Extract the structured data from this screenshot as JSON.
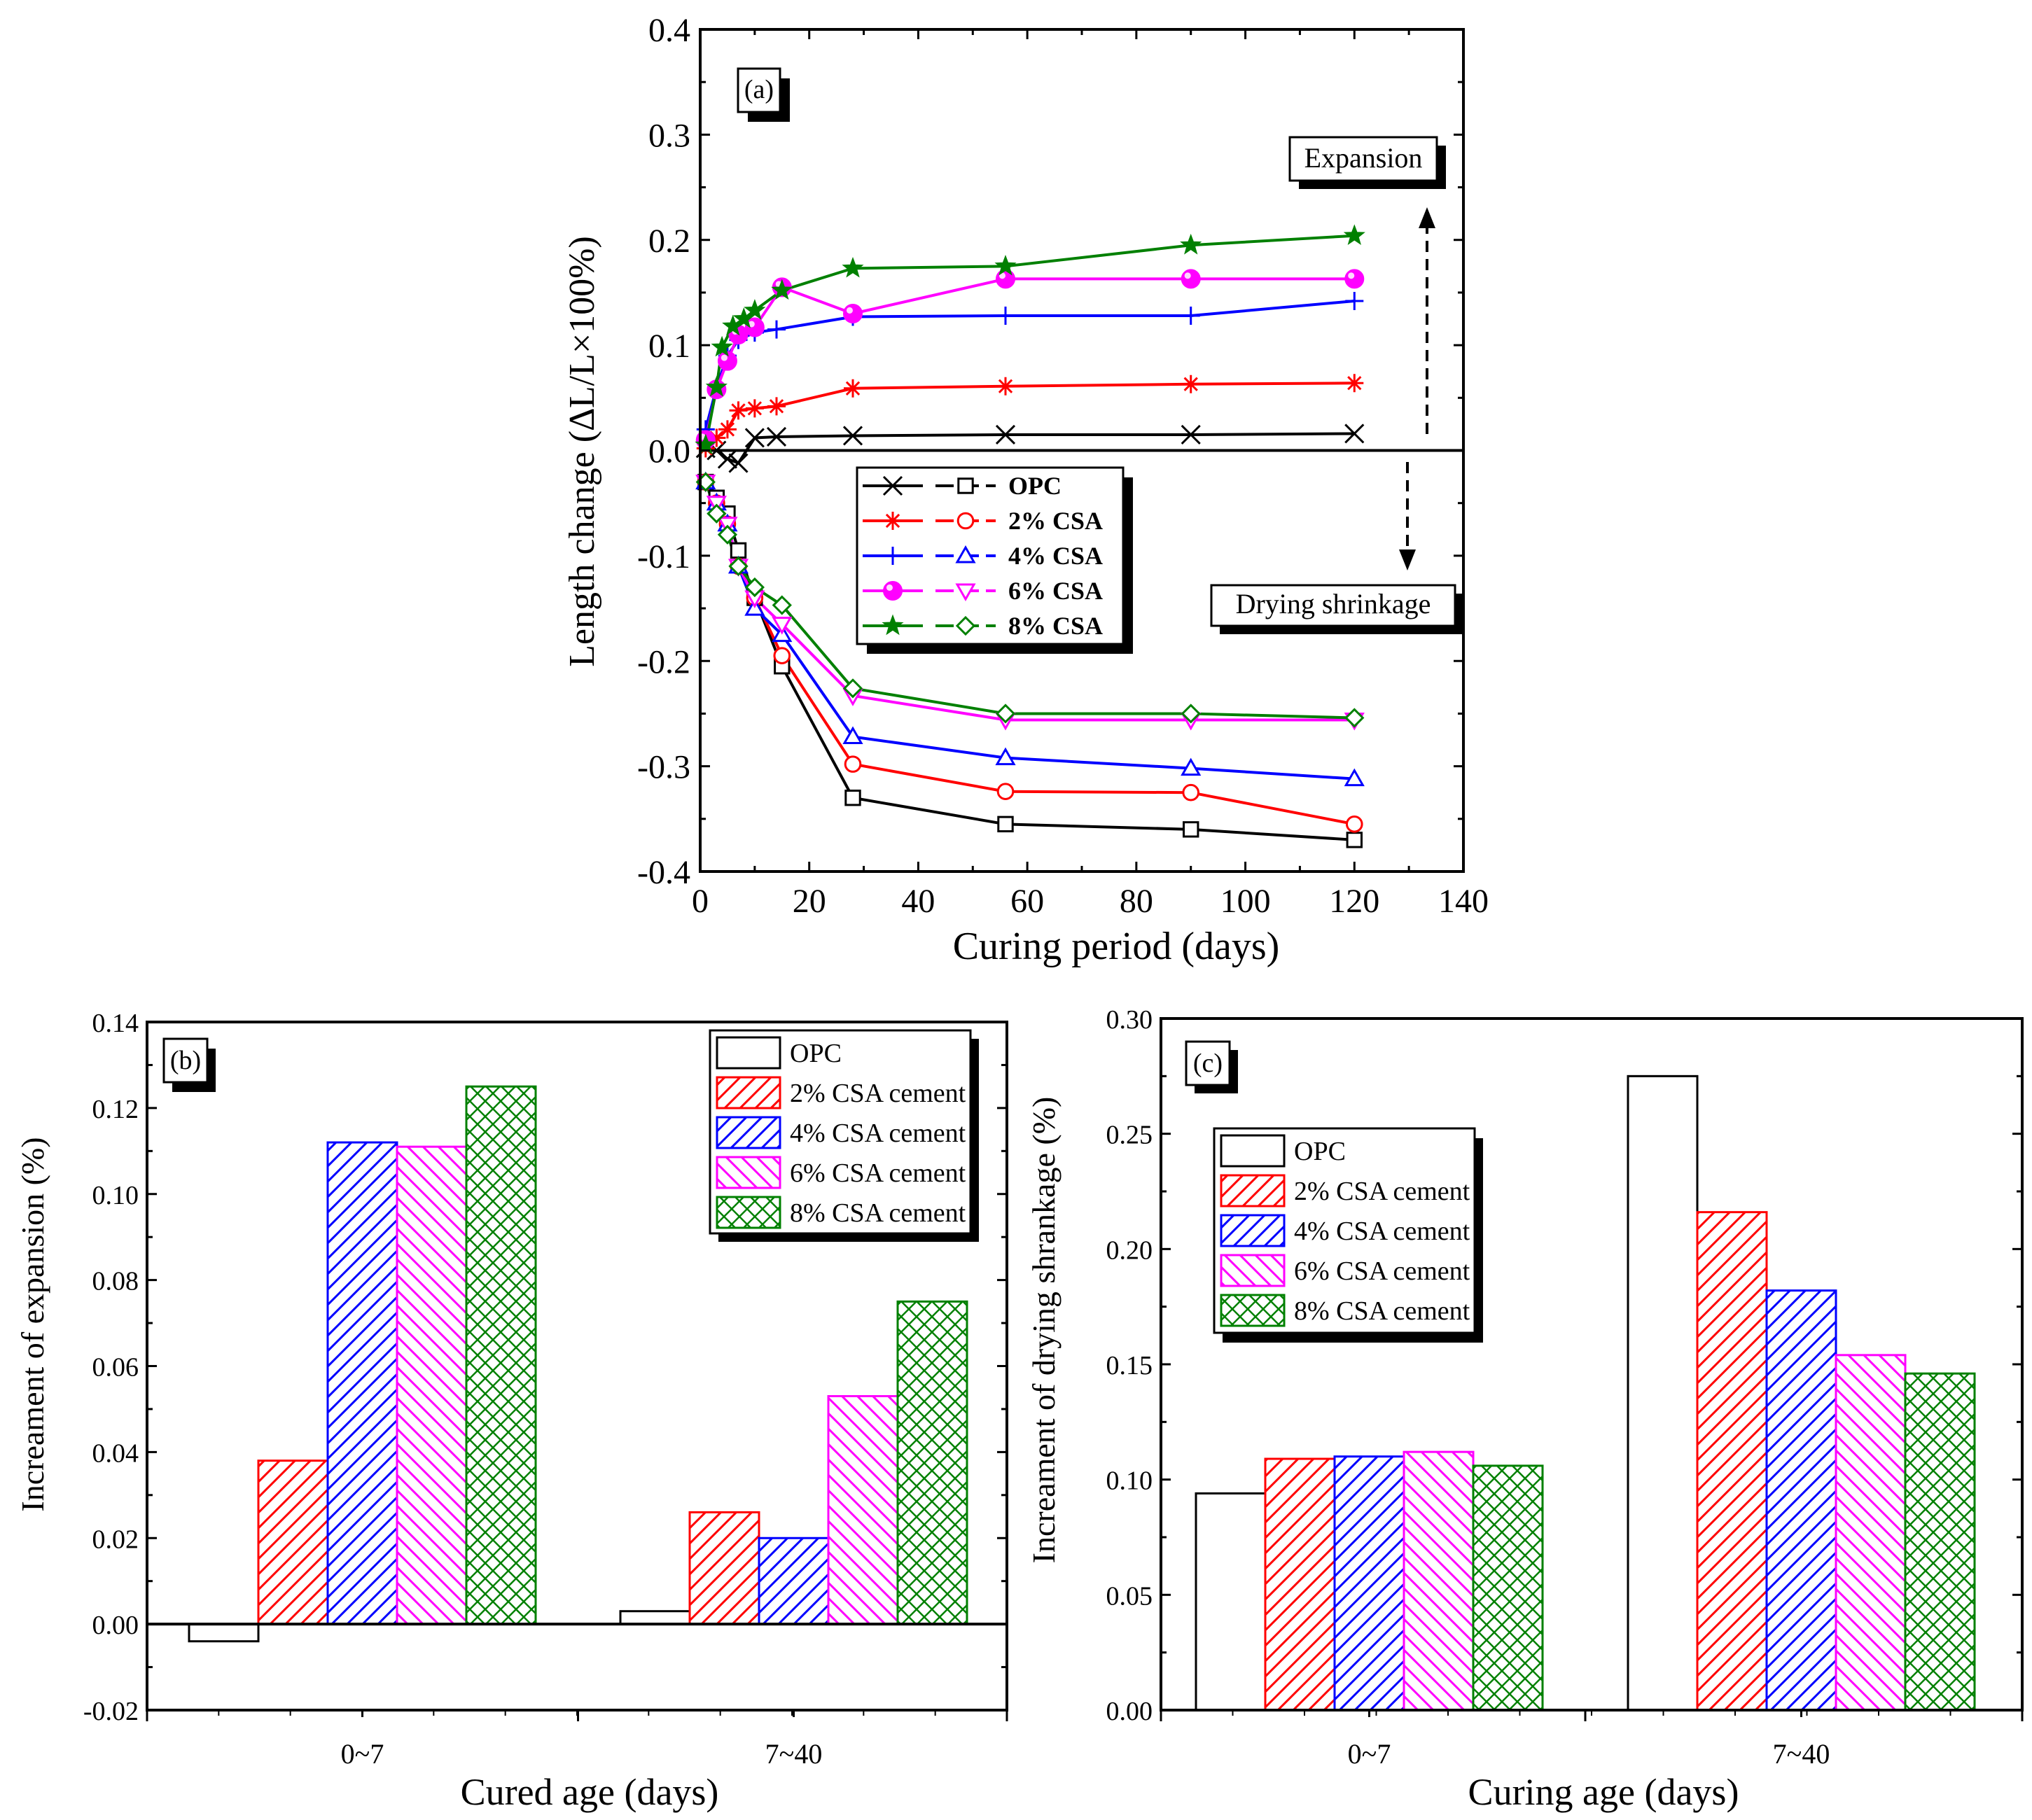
{
  "chart_data": [
    {
      "type": "line",
      "panel_label": "(a)",
      "xlabel": "Curing period (days)",
      "ylabel": "Length change (∆L/L×100%)",
      "xlim": [
        0,
        140
      ],
      "ylim": [
        -0.4,
        0.4
      ],
      "xticks": [
        "0",
        "20",
        "40",
        "60",
        "80",
        "100",
        "120",
        "140"
      ],
      "yticks": [
        "-0.4",
        "-0.3",
        "-0.2",
        "-0.1",
        "0.0",
        "0.1",
        "0.2",
        "0.3",
        "0.4"
      ],
      "annotations": {
        "expansion": "Expansion",
        "shrinkage": "Drying shrinkage"
      },
      "legend_position": "center-right",
      "series": [
        {
          "name": "OPC",
          "color": "#000000",
          "expansion_marker": "x",
          "shrinkage_marker": "square",
          "expansion_x": [
            1,
            3,
            5,
            7,
            10,
            14,
            28,
            56,
            90,
            120
          ],
          "expansion_y": [
            0.002,
            0.0,
            -0.008,
            -0.012,
            0.012,
            0.013,
            0.014,
            0.015,
            0.015,
            0.016
          ],
          "shrinkage_x": [
            1,
            3,
            5,
            7,
            10,
            15,
            28,
            56,
            90,
            120
          ],
          "shrinkage_y": [
            -0.03,
            -0.045,
            -0.06,
            -0.095,
            -0.14,
            -0.205,
            -0.33,
            -0.355,
            -0.36,
            -0.37
          ]
        },
        {
          "name": "2% CSA",
          "color": "#ff0000",
          "expansion_marker": "asterisk",
          "shrinkage_marker": "circle",
          "expansion_x": [
            1,
            3,
            5,
            7,
            10,
            14,
            28,
            56,
            90,
            120
          ],
          "expansion_y": [
            0.002,
            0.012,
            0.02,
            0.038,
            0.04,
            0.042,
            0.059,
            0.061,
            0.063,
            0.064
          ],
          "shrinkage_x": [
            1,
            3,
            5,
            7,
            10,
            15,
            28,
            56,
            90,
            120
          ],
          "shrinkage_y": [
            -0.03,
            -0.05,
            -0.07,
            -0.11,
            -0.14,
            -0.195,
            -0.298,
            -0.324,
            -0.325,
            -0.355
          ]
        },
        {
          "name": "4% CSA",
          "color": "#0000ff",
          "expansion_marker": "plus",
          "shrinkage_marker": "triangle-up",
          "expansion_x": [
            1,
            3,
            5,
            7,
            10,
            14,
            28,
            56,
            90,
            120
          ],
          "expansion_y": [
            0.02,
            0.06,
            0.09,
            0.105,
            0.112,
            0.115,
            0.127,
            0.128,
            0.128,
            0.142
          ],
          "shrinkage_x": [
            1,
            3,
            5,
            7,
            10,
            15,
            28,
            56,
            90,
            120
          ],
          "shrinkage_y": [
            -0.03,
            -0.05,
            -0.07,
            -0.11,
            -0.15,
            -0.175,
            -0.272,
            -0.292,
            -0.302,
            -0.312
          ]
        },
        {
          "name": "6% CSA",
          "color": "#ff00ff",
          "expansion_marker": "filled-sphere",
          "shrinkage_marker": "triangle-down",
          "expansion_x": [
            1,
            3,
            5,
            7,
            10,
            15,
            28,
            56,
            90,
            120
          ],
          "expansion_y": [
            0.01,
            0.058,
            0.085,
            0.11,
            0.117,
            0.155,
            0.13,
            0.163,
            0.163,
            0.163
          ],
          "shrinkage_x": [
            1,
            3,
            5,
            7,
            10,
            15,
            28,
            56,
            90,
            120
          ],
          "shrinkage_y": [
            -0.03,
            -0.05,
            -0.07,
            -0.11,
            -0.14,
            -0.165,
            -0.233,
            -0.256,
            -0.256,
            -0.256
          ]
        },
        {
          "name": "8% CSA",
          "color": "#008000",
          "expansion_marker": "filled-star",
          "shrinkage_marker": "diamond",
          "expansion_x": [
            1,
            3,
            4,
            6,
            8,
            10,
            15,
            28,
            56,
            90,
            120
          ],
          "expansion_y": [
            0.005,
            0.06,
            0.098,
            0.118,
            0.125,
            0.133,
            0.152,
            0.173,
            0.175,
            0.195,
            0.204
          ],
          "shrinkage_x": [
            1,
            3,
            5,
            7,
            10,
            15,
            28,
            56,
            90,
            120
          ],
          "shrinkage_y": [
            -0.03,
            -0.06,
            -0.08,
            -0.11,
            -0.13,
            -0.147,
            -0.226,
            -0.25,
            -0.25,
            -0.254
          ]
        }
      ]
    },
    {
      "type": "bar",
      "panel_label": "(b)",
      "xlabel": "Cured age (days)",
      "ylabel": "Increament of expansion (%)",
      "categories": [
        "0~7",
        "7~40"
      ],
      "ylim": [
        -0.02,
        0.14
      ],
      "yticks": [
        "-0.02",
        "0.00",
        "0.02",
        "0.04",
        "0.06",
        "0.08",
        "0.10",
        "0.12",
        "0.14"
      ],
      "legend_position": "top-right",
      "series": [
        {
          "name": "OPC",
          "color": "#000000",
          "pattern": "none",
          "values": [
            -0.004,
            0.003
          ]
        },
        {
          "name": "2% CSA cement",
          "color": "#ff0000",
          "pattern": "hatch-right",
          "values": [
            0.038,
            0.026
          ]
        },
        {
          "name": "4% CSA cement",
          "color": "#0000ff",
          "pattern": "hatch-right",
          "values": [
            0.112,
            0.02
          ]
        },
        {
          "name": "6% CSA cement",
          "color": "#ff00ff",
          "pattern": "hatch-left",
          "values": [
            0.111,
            0.053
          ]
        },
        {
          "name": "8% CSA cement",
          "color": "#008000",
          "pattern": "crosshatch",
          "values": [
            0.125,
            0.075
          ]
        }
      ]
    },
    {
      "type": "bar",
      "panel_label": "(c)",
      "xlabel": "Curing age (days)",
      "ylabel": "Increament of drying shrankage (%)",
      "categories": [
        "0~7",
        "7~40"
      ],
      "ylim": [
        0,
        0.3
      ],
      "yticks": [
        "0.00",
        "0.05",
        "0.10",
        "0.15",
        "0.20",
        "0.25",
        "0.30"
      ],
      "legend_position": "top-left",
      "series": [
        {
          "name": "OPC",
          "color": "#000000",
          "pattern": "none",
          "values": [
            0.094,
            0.275
          ]
        },
        {
          "name": "2% CSA cement",
          "color": "#ff0000",
          "pattern": "hatch-right",
          "values": [
            0.109,
            0.216
          ]
        },
        {
          "name": "4% CSA cement",
          "color": "#0000ff",
          "pattern": "hatch-right",
          "values": [
            0.11,
            0.182
          ]
        },
        {
          "name": "6% CSA cement",
          "color": "#ff00ff",
          "pattern": "hatch-left",
          "values": [
            0.112,
            0.154
          ]
        },
        {
          "name": "8% CSA cement",
          "color": "#008000",
          "pattern": "crosshatch",
          "values": [
            0.106,
            0.146
          ]
        }
      ]
    }
  ]
}
